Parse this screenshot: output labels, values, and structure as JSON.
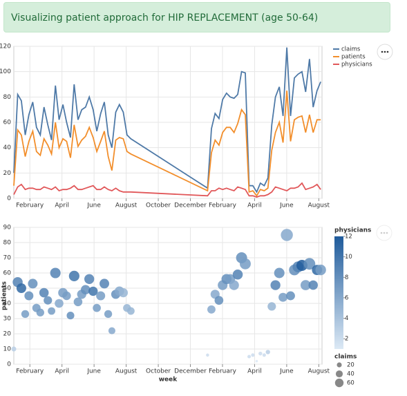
{
  "header": {
    "title": "Visualizing patient approach for HIP REPLACEMENT (age 50-64)"
  },
  "chart_data": [
    {
      "type": "line",
      "x": [
        0,
        0.24,
        0.47,
        0.71,
        0.94,
        1.18,
        1.41,
        1.65,
        1.88,
        2.12,
        2.35,
        2.59,
        2.82,
        3.06,
        3.29,
        3.53,
        3.76,
        4,
        4.23,
        4.47,
        4.7,
        4.94,
        5.17,
        5.41,
        5.64,
        5.88,
        6.11,
        6.35,
        6.58,
        6.82,
        7.05,
        7.29,
        12.07,
        12.31,
        12.54,
        12.78,
        13.01,
        13.25,
        13.48,
        13.72,
        13.95,
        14.19,
        14.42,
        14.66,
        14.89,
        15.13,
        15.36,
        15.6,
        15.83,
        16.07,
        16.3,
        16.54,
        16.77,
        17.01,
        17.24,
        17.48,
        17.71,
        17.95,
        18.18,
        18.42,
        18.65,
        18.89,
        19.12
      ],
      "series": [
        {
          "name": "claims",
          "color": "#4e79a7",
          "values": [
            20,
            82,
            77,
            50,
            66,
            76,
            56,
            50,
            72,
            58,
            46,
            89,
            62,
            74,
            60,
            48,
            90,
            62,
            70,
            72,
            80,
            70,
            53,
            67,
            76,
            50,
            40,
            68,
            74,
            68,
            50,
            47,
            8,
            55,
            67,
            63,
            78,
            83,
            80,
            79,
            82,
            100,
            99,
            10,
            10,
            5,
            12,
            10,
            16,
            58,
            80,
            88,
            65,
            119,
            65,
            95,
            98,
            100,
            84,
            110,
            72,
            85,
            92
          ]
        },
        {
          "name": "patients",
          "color": "#f28e2b",
          "values": [
            10,
            54,
            50,
            33,
            45,
            53,
            37,
            34,
            47,
            42,
            35,
            60,
            40,
            47,
            45,
            32,
            58,
            41,
            46,
            49,
            56,
            48,
            37,
            45,
            53,
            33,
            22,
            46,
            48,
            47,
            37,
            35,
            6,
            36,
            46,
            42,
            52,
            56,
            56,
            52,
            59,
            70,
            66,
            5,
            6,
            2,
            7,
            6,
            8,
            38,
            52,
            60,
            44,
            85,
            45,
            62,
            64,
            65,
            52,
            66,
            52,
            62,
            62
          ]
        },
        {
          "name": "physicians",
          "color": "#e15759",
          "values": [
            3,
            9,
            11,
            7,
            8,
            8,
            7,
            7,
            9,
            8,
            7,
            9,
            6,
            7,
            7,
            8,
            10,
            7,
            7,
            8,
            9,
            10,
            7,
            7,
            9,
            7,
            6,
            8,
            6,
            5,
            5,
            5,
            2,
            6,
            6,
            8,
            7,
            8,
            7,
            6,
            9,
            8,
            7,
            2,
            2,
            1,
            2,
            2,
            3,
            5,
            9,
            8,
            7,
            6,
            8,
            8,
            9,
            12,
            7,
            8,
            9,
            11,
            7
          ]
        }
      ],
      "xlim": [
        0,
        19.2
      ],
      "xticks": [
        {
          "value": 1,
          "label": "February"
        },
        {
          "value": 3,
          "label": "April"
        },
        {
          "value": 5,
          "label": "June"
        },
        {
          "value": 7,
          "label": "August"
        },
        {
          "value": 9,
          "label": "October"
        },
        {
          "value": 11,
          "label": "December"
        },
        {
          "value": 13,
          "label": "February"
        },
        {
          "value": 15,
          "label": "April"
        },
        {
          "value": 17,
          "label": "June"
        },
        {
          "value": 19,
          "label": "August"
        }
      ],
      "ylim": [
        0,
        120
      ],
      "yticks": [
        0,
        20,
        40,
        60,
        80,
        100,
        120
      ],
      "grid": true,
      "legend": "right"
    },
    {
      "type": "scatter",
      "x_label": "week",
      "y_label": "patients",
      "x": [
        0,
        0.24,
        0.47,
        0.71,
        0.94,
        1.18,
        1.41,
        1.65,
        1.88,
        2.12,
        2.35,
        2.59,
        2.82,
        3.06,
        3.29,
        3.53,
        3.76,
        4,
        4.23,
        4.47,
        4.7,
        4.94,
        5.17,
        5.41,
        5.64,
        5.88,
        6.11,
        6.35,
        6.58,
        6.82,
        7.05,
        7.29,
        12.07,
        12.31,
        12.54,
        12.78,
        13.01,
        13.25,
        13.48,
        13.72,
        13.95,
        14.19,
        14.42,
        14.66,
        14.89,
        15.13,
        15.36,
        15.6,
        15.83,
        16.07,
        16.3,
        16.54,
        16.77,
        17.01,
        17.24,
        17.48,
        17.71,
        17.95,
        18.18,
        18.42,
        18.65,
        18.89,
        19.12
      ],
      "y": [
        10,
        54,
        50,
        33,
        45,
        53,
        37,
        34,
        47,
        42,
        35,
        60,
        40,
        47,
        45,
        32,
        58,
        41,
        46,
        49,
        56,
        48,
        37,
        45,
        53,
        33,
        22,
        46,
        48,
        47,
        37,
        35,
        6,
        36,
        46,
        42,
        52,
        56,
        56,
        52,
        59,
        70,
        66,
        5,
        6,
        2,
        7,
        6,
        8,
        38,
        52,
        60,
        44,
        85,
        45,
        62,
        64,
        65,
        52,
        66,
        52,
        62,
        62
      ],
      "size": [
        20,
        82,
        77,
        50,
        66,
        76,
        56,
        50,
        72,
        58,
        46,
        89,
        62,
        74,
        60,
        48,
        90,
        62,
        70,
        72,
        80,
        70,
        53,
        67,
        76,
        50,
        40,
        68,
        74,
        68,
        50,
        47,
        8,
        55,
        67,
        63,
        78,
        83,
        80,
        79,
        82,
        100,
        99,
        10,
        10,
        5,
        12,
        10,
        16,
        58,
        80,
        88,
        65,
        119,
        65,
        95,
        98,
        100,
        84,
        110,
        72,
        85,
        92
      ],
      "color_values": [
        3,
        9,
        11,
        7,
        8,
        8,
        7,
        7,
        9,
        8,
        7,
        9,
        6,
        7,
        7,
        8,
        10,
        7,
        7,
        8,
        9,
        10,
        7,
        7,
        9,
        7,
        6,
        8,
        6,
        5,
        5,
        5,
        2,
        6,
        6,
        8,
        7,
        8,
        7,
        6,
        9,
        8,
        7,
        2,
        2,
        1,
        2,
        2,
        3,
        5,
        9,
        8,
        7,
        6,
        8,
        8,
        9,
        12,
        7,
        8,
        9,
        11,
        7
      ],
      "color_title": "physicians",
      "colors": [
        "#dce9f5",
        "#1f5b9b"
      ],
      "clim": [
        1,
        12
      ],
      "color_ticks": [
        2,
        4,
        6,
        8,
        10,
        12
      ],
      "size_title": "claims",
      "size_ticks": [
        20,
        40,
        60
      ],
      "xlim": [
        0,
        19.2
      ],
      "xticks": [
        {
          "value": 1,
          "label": "February"
        },
        {
          "value": 3,
          "label": "April"
        },
        {
          "value": 5,
          "label": "June"
        },
        {
          "value": 7,
          "label": "August"
        },
        {
          "value": 9,
          "label": "October"
        },
        {
          "value": 11,
          "label": "December"
        },
        {
          "value": 13,
          "label": "February"
        },
        {
          "value": 15,
          "label": "April"
        },
        {
          "value": 17,
          "label": "June"
        },
        {
          "value": 19,
          "label": "August"
        }
      ],
      "ylim": [
        0,
        90
      ],
      "yticks": [
        0,
        10,
        20,
        30,
        40,
        50,
        60,
        70,
        80,
        90
      ],
      "grid": true
    }
  ]
}
